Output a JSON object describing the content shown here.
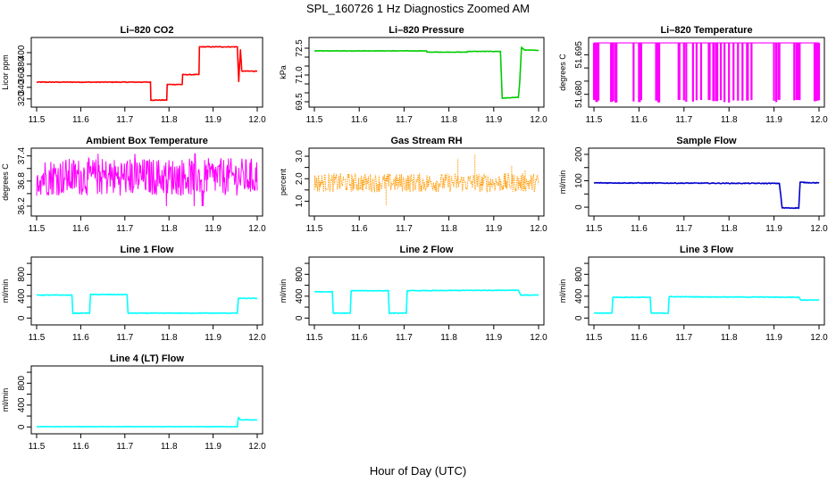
{
  "figure": {
    "title": "SPL_160726  1 Hz Diagnostics Zoomed AM",
    "xlabel": "Hour of Day (UTC)"
  },
  "chart_data": [
    {
      "type": "line",
      "title": "Li–820 CO2",
      "ylabel": "Licor ppm",
      "color": "#ff0000",
      "xlim": [
        11.5,
        12.0
      ],
      "ylim": [
        312,
        420
      ],
      "yticks": [
        320,
        340,
        360,
        380,
        400
      ],
      "xticks": [
        11.5,
        11.6,
        11.7,
        11.8,
        11.9,
        12.0
      ],
      "noise": 0.6,
      "x": [
        11.5,
        11.758,
        11.759,
        11.795,
        11.796,
        11.83,
        11.831,
        11.868,
        11.869,
        11.955,
        11.958,
        11.962,
        11.965,
        12.0
      ],
      "y": [
        349,
        349,
        318,
        318,
        345,
        345,
        362,
        362,
        410,
        410,
        350,
        405,
        368,
        368
      ]
    },
    {
      "type": "line",
      "title": "Li–820 Pressure",
      "ylabel": "kPa",
      "color": "#00cc00",
      "xlim": [
        11.5,
        12.0
      ],
      "ylim": [
        69.4,
        72.9
      ],
      "yticks": [
        69.5,
        70.0,
        70.5,
        71.0,
        71.5,
        72.0,
        72.5
      ],
      "ytick_labels": [
        "69.5",
        "",
        "",
        "71.0",
        "",
        "",
        "72.5"
      ],
      "xticks": [
        11.5,
        11.6,
        11.7,
        11.8,
        11.9,
        12.0
      ],
      "noise": 0.012,
      "x": [
        11.5,
        11.75,
        11.751,
        11.84,
        11.841,
        11.915,
        11.919,
        11.955,
        11.958,
        11.962,
        11.968,
        12.0
      ],
      "y": [
        72.35,
        72.35,
        72.28,
        72.28,
        72.32,
        72.32,
        69.7,
        69.75,
        70.6,
        72.55,
        72.4,
        72.38
      ]
    },
    {
      "type": "line",
      "title": "Li–820 Temperature",
      "ylabel": "degrees C",
      "color": "#ff00ff",
      "xlim": [
        11.5,
        12.0
      ],
      "ylim": [
        51.6765,
        51.7002
      ],
      "yticks": [
        51.68,
        51.685,
        51.69,
        51.695
      ],
      "ytick_labels": [
        "51.680",
        "",
        "",
        "51.695"
      ],
      "xticks": [
        11.5,
        11.6,
        11.7,
        11.8,
        11.9,
        12.0
      ],
      "base": 51.6995,
      "low": 51.6768,
      "spikes": [
        11.5,
        11.505,
        11.51,
        11.538,
        11.543,
        11.548,
        11.588,
        11.6,
        11.605,
        11.638,
        11.643,
        11.688,
        11.7,
        11.705,
        11.72,
        11.728,
        11.738,
        11.755,
        11.765,
        11.772,
        11.782,
        11.79,
        11.8,
        11.81,
        11.82,
        11.83,
        11.84,
        11.85,
        11.9,
        11.905,
        11.91,
        11.945,
        11.95,
        11.955,
        11.99,
        11.995,
        12.0
      ]
    },
    {
      "type": "line",
      "title": "Ambient Box Temperature",
      "ylabel": "degrees C",
      "color": "#ff00ff",
      "xlim": [
        11.5,
        12.0
      ],
      "ylim": [
        36.05,
        37.5
      ],
      "yticks": [
        36.2,
        36.5,
        36.8,
        37.1,
        37.4
      ],
      "ytick_labels": [
        "36.2",
        "",
        "36.8",
        "",
        "37.4"
      ],
      "xticks": [
        11.5,
        11.6,
        11.7,
        11.8,
        11.9,
        12.0
      ],
      "band": [
        36.45,
        37.35
      ],
      "band_extreme": [
        36.2,
        37.45
      ]
    },
    {
      "type": "scatter",
      "title": "Gas Stream RH",
      "ylabel": "percent",
      "color": "#ff9900",
      "xlim": [
        11.5,
        12.0
      ],
      "ylim": [
        0.5,
        3.2
      ],
      "yticks": [
        1.0,
        1.5,
        2.0,
        2.5,
        3.0
      ],
      "ytick_labels": [
        "1.0",
        "",
        "2.0",
        "",
        "3.0"
      ],
      "xticks": [
        11.5,
        11.6,
        11.7,
        11.8,
        11.9,
        12.0
      ],
      "band": [
        1.4,
        2.25
      ],
      "outliers": [
        [
          11.82,
          2.9
        ],
        [
          11.858,
          3.1
        ],
        [
          11.66,
          0.8
        ],
        [
          11.94,
          2.6
        ],
        [
          11.97,
          2.4
        ]
      ]
    },
    {
      "type": "line",
      "title": "Sample Flow",
      "ylabel": "ml/min",
      "color": "#0000cc",
      "xlim": [
        11.5,
        12.0
      ],
      "ylim": [
        -20,
        210
      ],
      "yticks": [
        0,
        50,
        100,
        150,
        200
      ],
      "ytick_labels": [
        "0",
        "",
        "100",
        "",
        "200"
      ],
      "xticks": [
        11.5,
        11.6,
        11.7,
        11.8,
        11.9,
        12.0
      ],
      "noise": 1.5,
      "x": [
        11.5,
        11.912,
        11.918,
        11.955,
        11.958,
        12.0
      ],
      "y": [
        92,
        90,
        -3,
        -3,
        94,
        92
      ]
    },
    {
      "type": "line",
      "title": "Line 1 Flow",
      "ylabel": "ml/min",
      "color": "#00ffff",
      "xlim": [
        11.5,
        12.0
      ],
      "ylim": [
        -60,
        1050
      ],
      "yticks": [
        0,
        200,
        400,
        600,
        800,
        1000
      ],
      "ytick_labels": [
        "0",
        "",
        "400",
        "",
        "800",
        ""
      ],
      "xticks": [
        11.5,
        11.6,
        11.7,
        11.8,
        11.9,
        12.0
      ],
      "noise": 6,
      "x": [
        11.5,
        11.58,
        11.582,
        11.62,
        11.622,
        11.705,
        11.707,
        11.955,
        11.957,
        12.0
      ],
      "y": [
        420,
        420,
        90,
        90,
        430,
        430,
        90,
        90,
        360,
        360
      ]
    },
    {
      "type": "line",
      "title": "Line 2 Flow",
      "ylabel": "ml/min",
      "color": "#00ffff",
      "xlim": [
        11.5,
        12.0
      ],
      "ylim": [
        -60,
        1050
      ],
      "yticks": [
        0,
        200,
        400,
        600,
        800,
        1000
      ],
      "ytick_labels": [
        "0",
        "",
        "400",
        "",
        "800",
        ""
      ],
      "xticks": [
        11.5,
        11.6,
        11.7,
        11.8,
        11.9,
        12.0
      ],
      "noise": 6,
      "x": [
        11.5,
        11.54,
        11.542,
        11.58,
        11.582,
        11.665,
        11.667,
        11.705,
        11.707,
        11.955,
        11.96,
        12.0
      ],
      "y": [
        480,
        480,
        90,
        90,
        500,
        500,
        90,
        90,
        500,
        510,
        420,
        420
      ]
    },
    {
      "type": "line",
      "title": "Line 3 Flow",
      "ylabel": "ml/min",
      "color": "#00ffff",
      "xlim": [
        11.5,
        12.0
      ],
      "ylim": [
        -60,
        1050
      ],
      "yticks": [
        0,
        200,
        400,
        600,
        800,
        1000
      ],
      "ytick_labels": [
        "0",
        "",
        "400",
        "",
        "800",
        ""
      ],
      "xticks": [
        11.5,
        11.6,
        11.7,
        11.8,
        11.9,
        12.0
      ],
      "noise": 6,
      "x": [
        11.5,
        11.54,
        11.542,
        11.625,
        11.627,
        11.665,
        11.667,
        11.955,
        11.96,
        12.0
      ],
      "y": [
        90,
        90,
        380,
        380,
        90,
        90,
        390,
        380,
        330,
        330
      ]
    },
    {
      "type": "line",
      "title": "Line 4 (LT) Flow",
      "ylabel": "ml/min",
      "color": "#00ffff",
      "xlim": [
        11.5,
        12.0
      ],
      "ylim": [
        -60,
        1050
      ],
      "yticks": [
        0,
        200,
        400,
        600,
        800,
        1000
      ],
      "ytick_labels": [
        "0",
        "",
        "400",
        "",
        "800",
        ""
      ],
      "xticks": [
        11.5,
        11.6,
        11.7,
        11.8,
        11.9,
        12.0
      ],
      "noise": 4,
      "x": [
        11.5,
        11.955,
        11.957,
        11.962,
        12.0
      ],
      "y": [
        5,
        5,
        170,
        130,
        130
      ]
    }
  ]
}
